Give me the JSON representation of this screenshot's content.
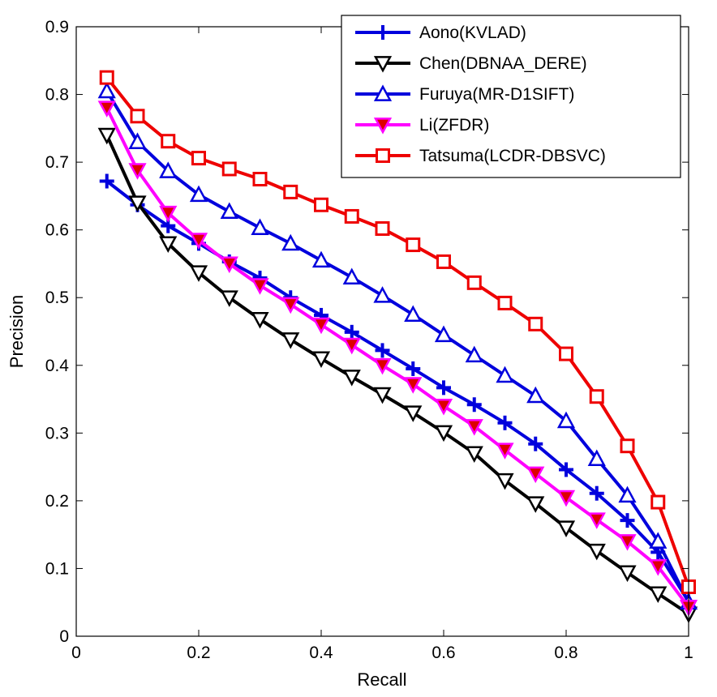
{
  "chart_data": {
    "type": "line",
    "title": "",
    "xlabel": "Recall",
    "ylabel": "Precision",
    "xlim": [
      0,
      1
    ],
    "ylim": [
      0,
      0.9
    ],
    "xticks": [
      0,
      0.2,
      0.4,
      0.6,
      0.8,
      1
    ],
    "xtick_labels": [
      "0",
      "0.2",
      "0.4",
      "0.6",
      "0.8",
      "1"
    ],
    "yticks": [
      0,
      0.1,
      0.2,
      0.3,
      0.4,
      0.5,
      0.6,
      0.7,
      0.8,
      0.9
    ],
    "ytick_labels": [
      "0",
      "0.1",
      "0.2",
      "0.3",
      "0.4",
      "0.5",
      "0.6",
      "0.7",
      "0.8",
      "0.9"
    ],
    "grid": false,
    "legend_position": "top-right",
    "x": [
      0.05,
      0.1,
      0.15,
      0.2,
      0.25,
      0.3,
      0.35,
      0.4,
      0.45,
      0.5,
      0.55,
      0.6,
      0.65,
      0.7,
      0.75,
      0.8,
      0.85,
      0.9,
      0.95,
      1.0
    ],
    "series": [
      {
        "name": "Aono(KVLAD)",
        "color": "#0000dd",
        "marker": "plus",
        "values": [
          0.672,
          0.637,
          0.606,
          0.58,
          0.553,
          0.529,
          0.5,
          0.474,
          0.449,
          0.422,
          0.395,
          0.367,
          0.342,
          0.315,
          0.284,
          0.246,
          0.211,
          0.171,
          0.124,
          0.051
        ]
      },
      {
        "name": "Chen(DBNAA_DERE)",
        "color": "#000000",
        "marker": "triangle-down-open",
        "values": [
          0.74,
          0.64,
          0.58,
          0.537,
          0.5,
          0.468,
          0.438,
          0.41,
          0.383,
          0.357,
          0.33,
          0.301,
          0.27,
          0.23,
          0.196,
          0.16,
          0.126,
          0.094,
          0.063,
          0.033
        ]
      },
      {
        "name": "Furuya(MR-D1SIFT)",
        "color": "#0000dd",
        "marker": "triangle-up-open",
        "values": [
          0.805,
          0.73,
          0.687,
          0.652,
          0.627,
          0.603,
          0.58,
          0.555,
          0.53,
          0.503,
          0.475,
          0.445,
          0.415,
          0.385,
          0.355,
          0.318,
          0.262,
          0.208,
          0.14,
          0.05
        ]
      },
      {
        "name": "Li(ZFDR)",
        "color": "#ff00ff",
        "marker": "triangle-down-filled",
        "marker_fill": "#dd0000",
        "values": [
          0.78,
          0.688,
          0.625,
          0.585,
          0.55,
          0.518,
          0.49,
          0.46,
          0.43,
          0.4,
          0.372,
          0.34,
          0.31,
          0.275,
          0.24,
          0.205,
          0.172,
          0.14,
          0.103,
          0.043
        ]
      },
      {
        "name": "Tatsuma(LCDR-DBSVC)",
        "color": "#ee0000",
        "marker": "square-open",
        "values": [
          0.825,
          0.768,
          0.731,
          0.706,
          0.69,
          0.675,
          0.656,
          0.637,
          0.62,
          0.602,
          0.578,
          0.553,
          0.522,
          0.492,
          0.461,
          0.417,
          0.354,
          0.281,
          0.198,
          0.073
        ]
      }
    ]
  }
}
